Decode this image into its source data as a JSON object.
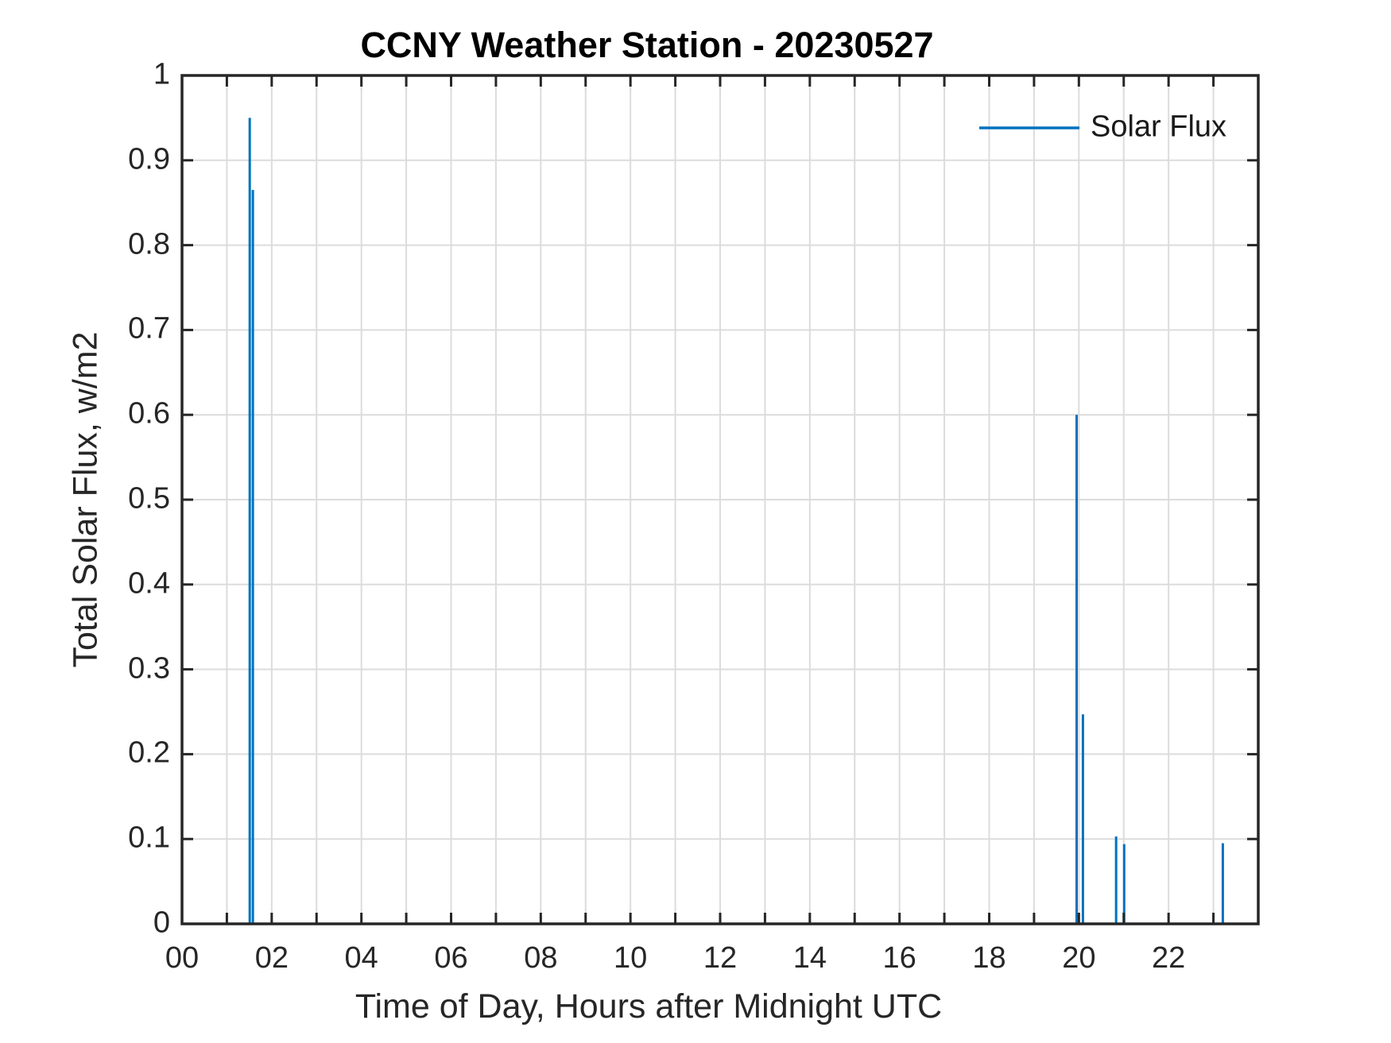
{
  "figure": {
    "background": "#ffffff"
  },
  "colors": {
    "line": "#0072BD",
    "grid": "#dcdcdc",
    "axis": "#262626",
    "text": "#262626",
    "title_text": "#000000"
  },
  "chart_data": {
    "type": "line",
    "title": "CCNY Weather Station - 20230527",
    "xlabel": "Time of Day, Hours after Midnight UTC",
    "ylabel": "Total Solar Flux, w/m2",
    "legend": [
      "Solar Flux"
    ],
    "legend_position": "top-right-inside, no box",
    "xlim": [
      0,
      24
    ],
    "ylim": [
      0,
      1
    ],
    "grid": {
      "x_step_hours": 1,
      "y_step": 0.1,
      "visible": true
    },
    "xticks": {
      "labeled_hours": [
        0,
        2,
        4,
        6,
        8,
        10,
        12,
        14,
        16,
        18,
        20,
        22
      ],
      "labels": [
        "00",
        "02",
        "04",
        "06",
        "08",
        "10",
        "12",
        "14",
        "16",
        "18",
        "20",
        "22"
      ],
      "minor_tick_every_hours": 1
    },
    "yticks": {
      "values": [
        0,
        0.1,
        0.2,
        0.3,
        0.4,
        0.5,
        0.6,
        0.7,
        0.8,
        0.9,
        1
      ],
      "labels": [
        "0",
        "0.1",
        "0.2",
        "0.3",
        "0.4",
        "0.5",
        "0.6",
        "0.7",
        "0.8",
        "0.9",
        "1"
      ]
    },
    "series": [
      {
        "name": "Solar Flux",
        "baseline_value": 0,
        "x_start": 0,
        "x_end": 23.97,
        "spikes": [
          [
            1.51,
            0.95
          ],
          [
            1.58,
            0.865
          ],
          [
            19.95,
            0.6
          ],
          [
            20.09,
            0.247
          ],
          [
            20.83,
            0.103
          ],
          [
            21.01,
            0.094
          ],
          [
            23.21,
            0.095
          ]
        ]
      }
    ]
  }
}
